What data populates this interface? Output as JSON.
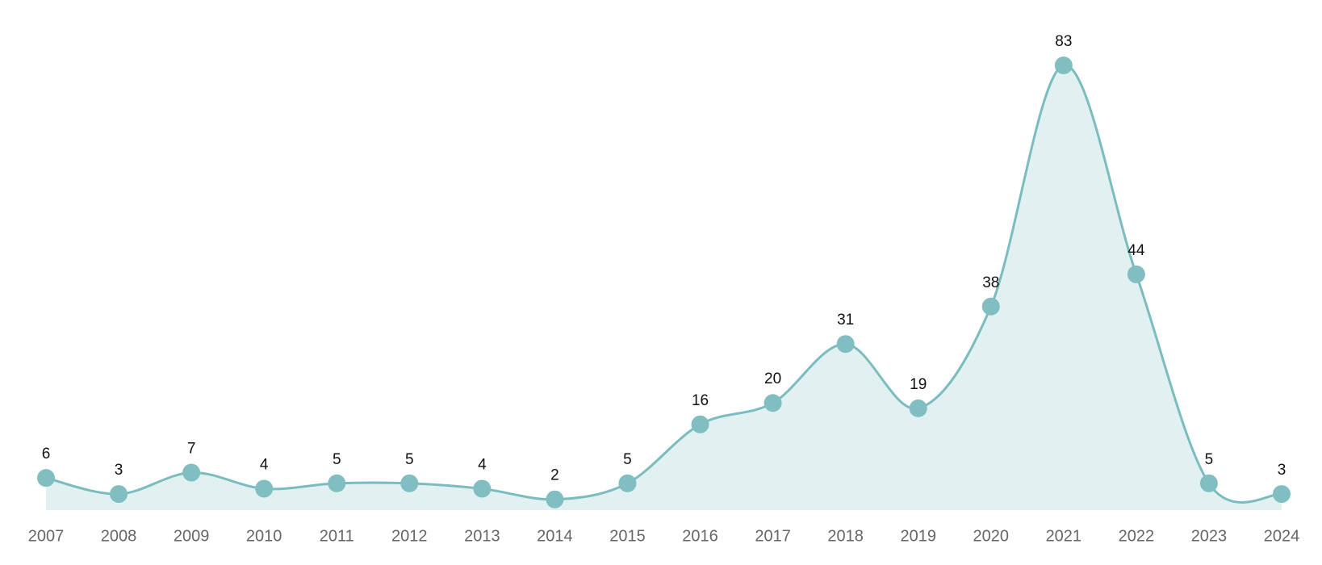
{
  "chart_data": {
    "type": "line",
    "categories": [
      "2007",
      "2008",
      "2009",
      "2010",
      "2011",
      "2012",
      "2013",
      "2014",
      "2015",
      "2016",
      "2017",
      "2018",
      "2019",
      "2020",
      "2021",
      "2022",
      "2023",
      "2024"
    ],
    "values": [
      6,
      3,
      7,
      4,
      5,
      5,
      4,
      2,
      5,
      16,
      20,
      31,
      19,
      38,
      83,
      44,
      5,
      3
    ],
    "color": "#7bbcbf",
    "area_color": "#e1f0f1",
    "marker_color": "#80bec1"
  }
}
